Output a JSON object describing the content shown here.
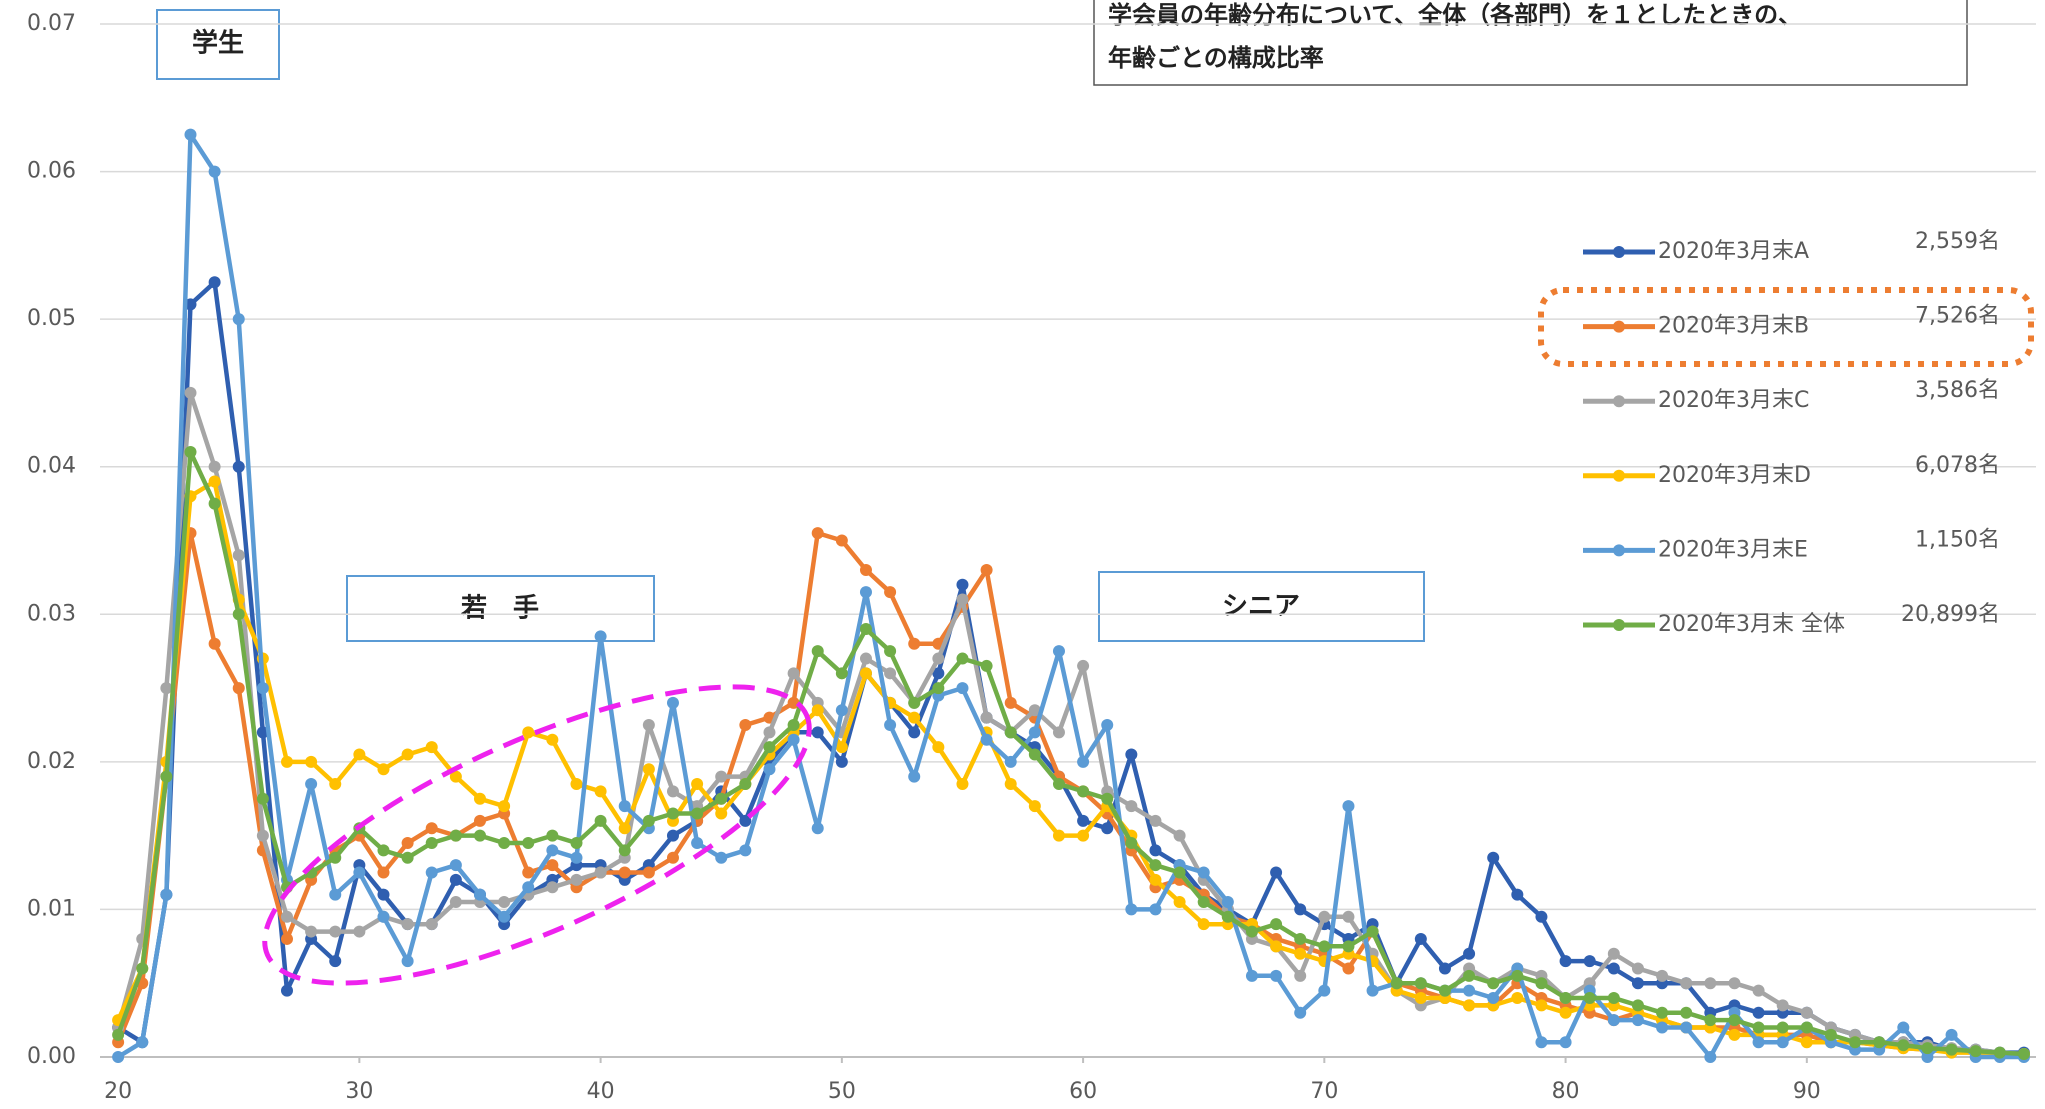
{
  "chart_data": {
    "type": "line",
    "title_lines": [
      "学会員の年齢分布について、全体（各部門）を１としたときの、",
      "年齢ごとの構成比率"
    ],
    "annotations": [
      "学生",
      "若　手",
      "シニア"
    ],
    "x": [
      20,
      21,
      22,
      23,
      24,
      25,
      26,
      27,
      28,
      29,
      30,
      31,
      32,
      33,
      34,
      35,
      36,
      37,
      38,
      39,
      40,
      41,
      42,
      43,
      44,
      45,
      46,
      47,
      48,
      49,
      50,
      51,
      52,
      53,
      54,
      55,
      56,
      57,
      58,
      59,
      60,
      61,
      62,
      63,
      64,
      65,
      66,
      67,
      68,
      69,
      70,
      71,
      72,
      73,
      74,
      75,
      76,
      77,
      78,
      79,
      80,
      81,
      82,
      83,
      84,
      85,
      86,
      87,
      88,
      89,
      90,
      91,
      92,
      93,
      94,
      95,
      96,
      97,
      98,
      99
    ],
    "xlim": [
      19,
      99.5
    ],
    "xticks": [
      20,
      30,
      40,
      50,
      60,
      70,
      80,
      90
    ],
    "ylim": [
      0,
      0.07
    ],
    "yticks": [
      {
        "value": 0,
        "label": "0.00"
      },
      {
        "value": 0.01,
        "label": "0.01"
      },
      {
        "value": 0.02,
        "label": "0.02"
      },
      {
        "value": 0.03,
        "label": "0.03"
      },
      {
        "value": 0.04,
        "label": "0.04"
      },
      {
        "value": 0.05,
        "label": "0.05"
      },
      {
        "value": 0.06,
        "label": "0.06"
      },
      {
        "value": 0.07,
        "label": "0.07"
      }
    ],
    "grid": true,
    "legend": "right",
    "series": [
      {
        "name": "2020年3月末A",
        "count": "2,559名",
        "color": "#2f5fb0",
        "values": [
          0.002,
          0.001,
          0.011,
          0.051,
          0.0525,
          0.04,
          0.022,
          0.0045,
          0.008,
          0.0065,
          0.013,
          0.011,
          0.009,
          0.009,
          0.012,
          0.011,
          0.009,
          0.011,
          0.012,
          0.013,
          0.013,
          0.012,
          0.013,
          0.015,
          0.016,
          0.018,
          0.016,
          0.02,
          0.022,
          0.022,
          0.02,
          0.026,
          0.024,
          0.022,
          0.026,
          0.032,
          0.023,
          0.022,
          0.021,
          0.019,
          0.016,
          0.0155,
          0.0205,
          0.014,
          0.013,
          0.011,
          0.01,
          0.009,
          0.0125,
          0.01,
          0.009,
          0.008,
          0.009,
          0.005,
          0.008,
          0.006,
          0.007,
          0.0135,
          0.011,
          0.0095,
          0.0065,
          0.0065,
          0.006,
          0.005,
          0.005,
          0.005,
          0.003,
          0.0035,
          0.003,
          0.003,
          0.003,
          0.002,
          0.0015,
          0.001,
          0.001,
          0.001,
          0.0005,
          0.0005,
          0.0003,
          0.0003
        ]
      },
      {
        "name": "2020年3月末B",
        "count": "7,526名",
        "color": "#ed7d31",
        "values": [
          0.001,
          0.005,
          0.019,
          0.0355,
          0.028,
          0.025,
          0.014,
          0.008,
          0.012,
          0.014,
          0.015,
          0.0125,
          0.0145,
          0.0155,
          0.015,
          0.016,
          0.0165,
          0.0125,
          0.013,
          0.0115,
          0.0125,
          0.0125,
          0.0125,
          0.0135,
          0.016,
          0.0175,
          0.0225,
          0.023,
          0.024,
          0.0355,
          0.035,
          0.033,
          0.0315,
          0.028,
          0.028,
          0.0305,
          0.033,
          0.024,
          0.023,
          0.019,
          0.018,
          0.0165,
          0.014,
          0.0115,
          0.012,
          0.011,
          0.0095,
          0.009,
          0.008,
          0.0075,
          0.007,
          0.006,
          0.0085,
          0.005,
          0.0045,
          0.004,
          0.0035,
          0.0035,
          0.005,
          0.004,
          0.0035,
          0.003,
          0.0025,
          0.003,
          0.0025,
          0.002,
          0.002,
          0.002,
          0.0015,
          0.0015,
          0.0015,
          0.001,
          0.001,
          0.0008,
          0.0006,
          0.0005,
          0.0004,
          0.0003,
          0.0002,
          0.0002
        ]
      },
      {
        "name": "2020年3月末C",
        "count": "3,586名",
        "color": "#a5a5a5",
        "values": [
          0.002,
          0.008,
          0.025,
          0.045,
          0.04,
          0.034,
          0.015,
          0.0095,
          0.0085,
          0.0085,
          0.0085,
          0.0095,
          0.009,
          0.009,
          0.0105,
          0.0105,
          0.0105,
          0.011,
          0.0115,
          0.012,
          0.0125,
          0.0135,
          0.0225,
          0.018,
          0.017,
          0.019,
          0.019,
          0.022,
          0.026,
          0.024,
          0.022,
          0.027,
          0.026,
          0.024,
          0.027,
          0.031,
          0.023,
          0.022,
          0.0235,
          0.022,
          0.0265,
          0.018,
          0.017,
          0.016,
          0.015,
          0.012,
          0.01,
          0.008,
          0.0075,
          0.0055,
          0.0095,
          0.0095,
          0.007,
          0.0045,
          0.0035,
          0.004,
          0.006,
          0.005,
          0.006,
          0.0055,
          0.004,
          0.005,
          0.007,
          0.006,
          0.0055,
          0.005,
          0.005,
          0.005,
          0.0045,
          0.0035,
          0.003,
          0.002,
          0.0015,
          0.001,
          0.001,
          0.0008,
          0.0006,
          0.0005,
          0.0003,
          0.0002
        ]
      },
      {
        "name": "2020年3月末D",
        "count": "6,078名",
        "color": "#ffc000",
        "values": [
          0.0025,
          0.006,
          0.02,
          0.038,
          0.039,
          0.031,
          0.027,
          0.02,
          0.02,
          0.0185,
          0.0205,
          0.0195,
          0.0205,
          0.021,
          0.019,
          0.0175,
          0.017,
          0.022,
          0.0215,
          0.0185,
          0.018,
          0.0155,
          0.0195,
          0.016,
          0.0185,
          0.0165,
          0.0185,
          0.0205,
          0.022,
          0.0235,
          0.021,
          0.026,
          0.024,
          0.023,
          0.021,
          0.0185,
          0.022,
          0.0185,
          0.017,
          0.015,
          0.015,
          0.017,
          0.015,
          0.012,
          0.0105,
          0.009,
          0.009,
          0.009,
          0.0075,
          0.007,
          0.0065,
          0.007,
          0.0065,
          0.0045,
          0.004,
          0.004,
          0.0035,
          0.0035,
          0.004,
          0.0035,
          0.003,
          0.0035,
          0.0035,
          0.003,
          0.0025,
          0.002,
          0.002,
          0.0015,
          0.0015,
          0.0015,
          0.001,
          0.001,
          0.001,
          0.0008,
          0.0006,
          0.0005,
          0.0003,
          0.0003,
          0.0002,
          0.0002
        ]
      },
      {
        "name": "2020年3月末E",
        "count": "1,150名",
        "color": "#5b9bd5",
        "values": [
          0.0,
          0.001,
          0.011,
          0.0625,
          0.06,
          0.05,
          0.025,
          0.012,
          0.0185,
          0.011,
          0.0125,
          0.0095,
          0.0065,
          0.0125,
          0.013,
          0.011,
          0.0095,
          0.0115,
          0.014,
          0.0135,
          0.0285,
          0.017,
          0.0155,
          0.024,
          0.0145,
          0.0135,
          0.014,
          0.0195,
          0.0215,
          0.0155,
          0.0235,
          0.0315,
          0.0225,
          0.019,
          0.0245,
          0.025,
          0.0215,
          0.02,
          0.022,
          0.0275,
          0.02,
          0.0225,
          0.01,
          0.01,
          0.013,
          0.0125,
          0.0105,
          0.0055,
          0.0055,
          0.003,
          0.0045,
          0.017,
          0.0045,
          0.005,
          0.005,
          0.0045,
          0.0045,
          0.004,
          0.006,
          0.001,
          0.001,
          0.0045,
          0.0025,
          0.0025,
          0.002,
          0.002,
          0.0,
          0.003,
          0.001,
          0.001,
          0.002,
          0.001,
          0.0005,
          0.0005,
          0.002,
          0.0,
          0.0015,
          0.0,
          0.0,
          0.0
        ]
      },
      {
        "name": "2020年3月末 全体",
        "count": "20,899名",
        "color": "#70ad47",
        "values": [
          0.0015,
          0.006,
          0.019,
          0.041,
          0.0375,
          0.03,
          0.0175,
          0.0115,
          0.0125,
          0.0135,
          0.0155,
          0.014,
          0.0135,
          0.0145,
          0.015,
          0.015,
          0.0145,
          0.0145,
          0.015,
          0.0145,
          0.016,
          0.014,
          0.016,
          0.0165,
          0.0165,
          0.0175,
          0.0185,
          0.021,
          0.0225,
          0.0275,
          0.026,
          0.029,
          0.0275,
          0.024,
          0.025,
          0.027,
          0.0265,
          0.022,
          0.0205,
          0.0185,
          0.018,
          0.0175,
          0.0145,
          0.013,
          0.0125,
          0.0105,
          0.0095,
          0.0085,
          0.009,
          0.008,
          0.0075,
          0.0075,
          0.0085,
          0.005,
          0.005,
          0.0045,
          0.0055,
          0.005,
          0.0055,
          0.005,
          0.004,
          0.004,
          0.004,
          0.0035,
          0.003,
          0.003,
          0.0025,
          0.0025,
          0.002,
          0.002,
          0.002,
          0.0015,
          0.001,
          0.001,
          0.0008,
          0.0006,
          0.0005,
          0.0004,
          0.0003,
          0.0002
        ]
      }
    ]
  }
}
